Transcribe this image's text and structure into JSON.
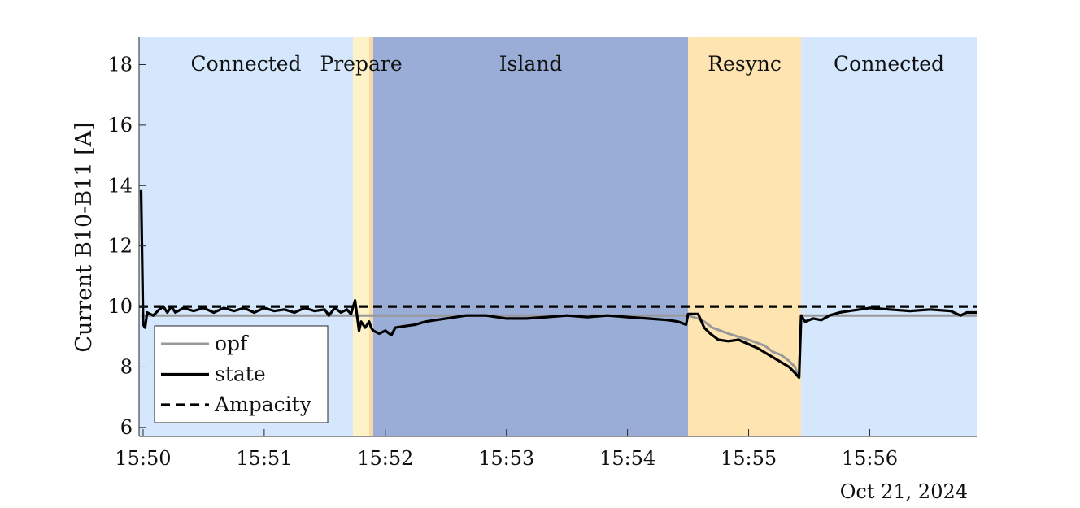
{
  "chart_data": {
    "type": "line",
    "title": "",
    "ylabel": "Current B10-B11 [A]",
    "xlabel": "",
    "date_label": "Oct 21, 2024",
    "xlim": [
      "15:49:58",
      "15:56:53"
    ],
    "ylim": [
      5.7,
      18.9
    ],
    "x_ticks": [
      "15:50",
      "15:51",
      "15:52",
      "15:53",
      "15:54",
      "15:55",
      "15:56"
    ],
    "y_ticks": [
      6,
      8,
      10,
      12,
      14,
      16,
      18
    ],
    "grid": false,
    "legend_position": "bottom-left",
    "phases": [
      {
        "label": "Connected",
        "start": "15:49:58",
        "end": "15:51:44",
        "color": "#d4e7fd"
      },
      {
        "label": "Prepare",
        "start": "15:51:44",
        "end": "15:51:52",
        "color": "#fdf2c8"
      },
      {
        "label": "",
        "start": "15:51:52",
        "end": "15:51:54",
        "color": "#fbd9a4"
      },
      {
        "label": "Island",
        "start": "15:51:54",
        "end": "15:54:30",
        "color": "#99add6"
      },
      {
        "label": "Resync",
        "start": "15:54:30",
        "end": "15:55:26",
        "color": "#fde4b0"
      },
      {
        "label": "Connected",
        "start": "15:55:26",
        "end": "15:56:53",
        "color": "#d4e7fd"
      }
    ],
    "series": [
      {
        "name": "opf",
        "color": "#999999",
        "points": [
          [
            "15:49:59",
            9.7
          ],
          [
            "15:51:47",
            9.7
          ],
          [
            "15:54:30",
            9.7
          ],
          [
            "15:54:35",
            9.6
          ],
          [
            "15:54:38",
            9.5
          ],
          [
            "15:54:42",
            9.3
          ],
          [
            "15:54:46",
            9.2
          ],
          [
            "15:54:50",
            9.1
          ],
          [
            "15:54:55",
            9.0
          ],
          [
            "15:55:00",
            8.9
          ],
          [
            "15:55:04",
            8.8
          ],
          [
            "15:55:08",
            8.7
          ],
          [
            "15:55:12",
            8.5
          ],
          [
            "15:55:16",
            8.4
          ],
          [
            "15:55:20",
            8.2
          ],
          [
            "15:55:23",
            8.0
          ],
          [
            "15:55:24",
            7.8
          ],
          [
            "15:55:25",
            7.7
          ],
          [
            "15:55:26",
            9.7
          ],
          [
            "15:56:53",
            9.7
          ]
        ]
      },
      {
        "name": "state",
        "color": "#000000",
        "points": [
          [
            "15:49:59",
            13.85
          ],
          [
            "15:50:00",
            9.4
          ],
          [
            "15:50:01",
            9.3
          ],
          [
            "15:50:02",
            9.8
          ],
          [
            "15:50:05",
            9.7
          ],
          [
            "15:50:08",
            9.9
          ],
          [
            "15:50:10",
            10.0
          ],
          [
            "15:50:12",
            9.8
          ],
          [
            "15:50:14",
            10.0
          ],
          [
            "15:50:16",
            9.8
          ],
          [
            "15:50:20",
            9.95
          ],
          [
            "15:50:25",
            9.85
          ],
          [
            "15:50:30",
            9.95
          ],
          [
            "15:50:35",
            9.8
          ],
          [
            "15:50:40",
            9.95
          ],
          [
            "15:50:45",
            9.85
          ],
          [
            "15:50:50",
            9.95
          ],
          [
            "15:50:55",
            9.8
          ],
          [
            "15:51:00",
            9.95
          ],
          [
            "15:51:05",
            9.85
          ],
          [
            "15:51:10",
            9.9
          ],
          [
            "15:51:15",
            9.8
          ],
          [
            "15:51:20",
            9.95
          ],
          [
            "15:51:25",
            9.85
          ],
          [
            "15:51:30",
            9.9
          ],
          [
            "15:51:32",
            9.7
          ],
          [
            "15:51:35",
            9.95
          ],
          [
            "15:51:38",
            9.8
          ],
          [
            "15:51:41",
            9.9
          ],
          [
            "15:51:43",
            9.75
          ],
          [
            "15:51:45",
            10.2
          ],
          [
            "15:51:47",
            9.2
          ],
          [
            "15:51:48",
            9.5
          ],
          [
            "15:51:50",
            9.3
          ],
          [
            "15:51:52",
            9.5
          ],
          [
            "15:51:53",
            9.3
          ],
          [
            "15:51:54",
            9.2
          ],
          [
            "15:51:57",
            9.1
          ],
          [
            "15:52:00",
            9.2
          ],
          [
            "15:52:03",
            9.05
          ],
          [
            "15:52:05",
            9.3
          ],
          [
            "15:52:10",
            9.35
          ],
          [
            "15:52:15",
            9.4
          ],
          [
            "15:52:20",
            9.5
          ],
          [
            "15:52:25",
            9.55
          ],
          [
            "15:52:30",
            9.6
          ],
          [
            "15:52:35",
            9.65
          ],
          [
            "15:52:40",
            9.7
          ],
          [
            "15:52:50",
            9.7
          ],
          [
            "15:53:00",
            9.6
          ],
          [
            "15:53:10",
            9.6
          ],
          [
            "15:53:20",
            9.65
          ],
          [
            "15:53:30",
            9.7
          ],
          [
            "15:53:40",
            9.65
          ],
          [
            "15:53:50",
            9.7
          ],
          [
            "15:54:00",
            9.65
          ],
          [
            "15:54:10",
            9.6
          ],
          [
            "15:54:20",
            9.55
          ],
          [
            "15:54:25",
            9.5
          ],
          [
            "15:54:29",
            9.4
          ],
          [
            "15:54:30",
            9.75
          ],
          [
            "15:54:35",
            9.75
          ],
          [
            "15:54:38",
            9.3
          ],
          [
            "15:54:41",
            9.1
          ],
          [
            "15:54:45",
            8.9
          ],
          [
            "15:54:50",
            8.85
          ],
          [
            "15:54:55",
            8.9
          ],
          [
            "15:55:00",
            8.75
          ],
          [
            "15:55:05",
            8.6
          ],
          [
            "15:55:10",
            8.4
          ],
          [
            "15:55:15",
            8.2
          ],
          [
            "15:55:20",
            8.0
          ],
          [
            "15:55:23",
            7.8
          ],
          [
            "15:55:25",
            7.65
          ],
          [
            "15:55:26",
            9.7
          ],
          [
            "15:55:28",
            9.5
          ],
          [
            "15:55:32",
            9.6
          ],
          [
            "15:55:36",
            9.55
          ],
          [
            "15:55:40",
            9.7
          ],
          [
            "15:55:45",
            9.8
          ],
          [
            "15:55:50",
            9.85
          ],
          [
            "15:55:55",
            9.9
          ],
          [
            "15:56:00",
            9.95
          ],
          [
            "15:56:10",
            9.9
          ],
          [
            "15:56:20",
            9.85
          ],
          [
            "15:56:30",
            9.9
          ],
          [
            "15:56:40",
            9.85
          ],
          [
            "15:56:45",
            9.7
          ],
          [
            "15:56:48",
            9.8
          ],
          [
            "15:56:53",
            9.8
          ]
        ]
      },
      {
        "name": "Ampacity",
        "color": "#000000",
        "dashed": true,
        "points": [
          [
            "15:49:58",
            10.0
          ],
          [
            "15:56:53",
            10.0
          ]
        ]
      }
    ]
  }
}
